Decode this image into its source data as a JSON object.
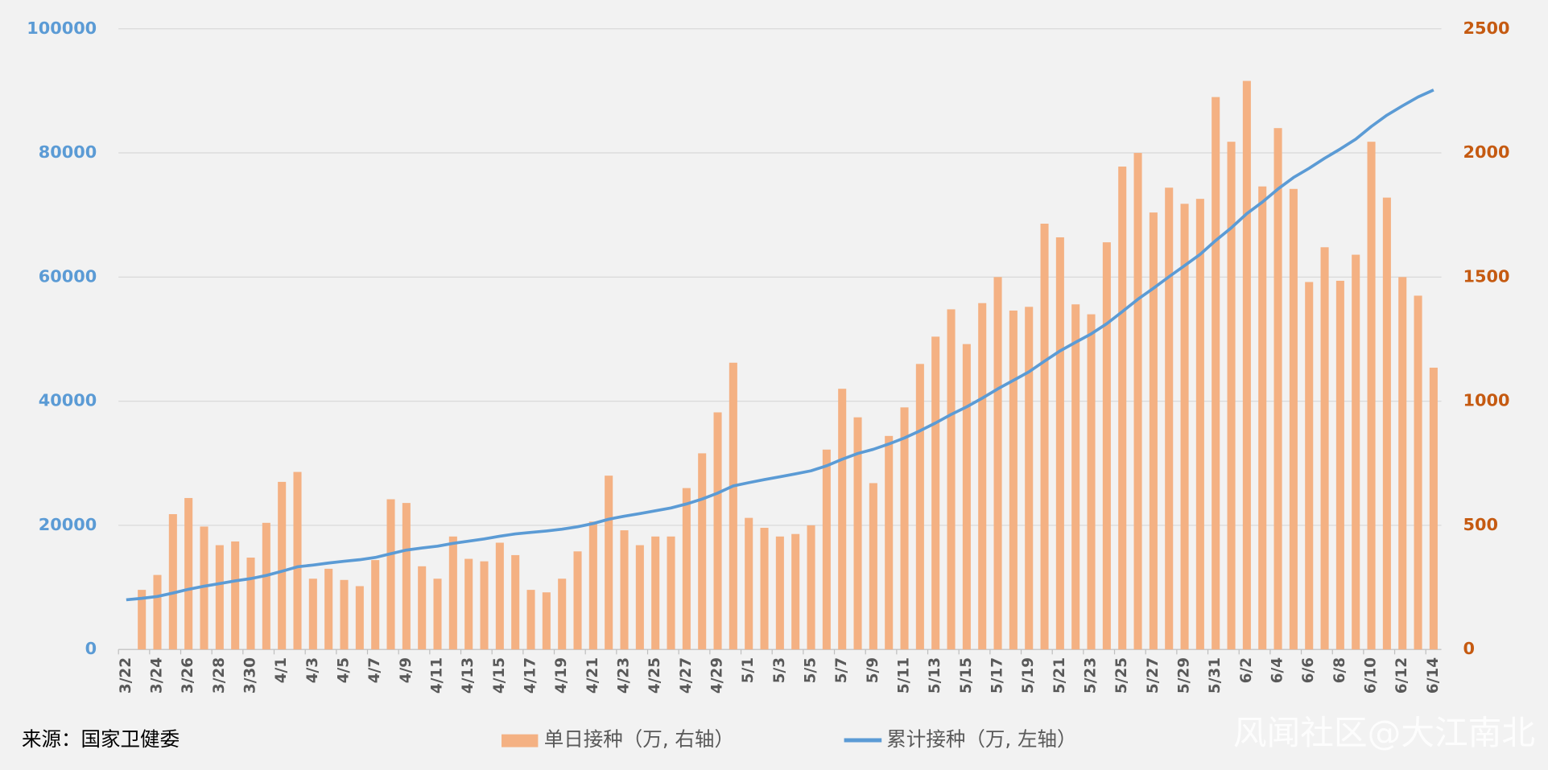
{
  "chart_data": {
    "type": "bar",
    "categories": [
      "3/22",
      null,
      "3/24",
      null,
      "3/26",
      null,
      "3/28",
      null,
      "3/30",
      null,
      "4/1",
      null,
      "4/3",
      null,
      "4/5",
      null,
      "4/7",
      null,
      "4/9",
      null,
      "4/11",
      null,
      "4/13",
      null,
      "4/15",
      null,
      "4/17",
      null,
      "4/19",
      null,
      "4/21",
      null,
      "4/23",
      null,
      "4/25",
      null,
      "4/27",
      null,
      "4/29",
      null,
      "5/1",
      null,
      "5/3",
      null,
      "5/5",
      null,
      "5/7",
      null,
      "5/9",
      null,
      "5/11",
      null,
      "5/13",
      null,
      "5/15",
      null,
      "5/17",
      null,
      "5/19",
      null,
      "5/21",
      null,
      "5/23",
      null,
      "5/25",
      null,
      "5/27",
      null,
      "5/29",
      null,
      "5/31",
      null,
      "6/2",
      null,
      "6/4",
      null,
      "6/6",
      null,
      "6/8",
      null,
      "6/10",
      null,
      "6/12",
      null,
      "6/14"
    ],
    "series": [
      {
        "name": "单日接种（万, 右轴）",
        "type": "bar",
        "axis": "y2",
        "color": "#f4b183",
        "values": [
          null,
          240,
          300,
          545,
          610,
          495,
          420,
          435,
          370,
          510,
          675,
          715,
          285,
          325,
          280,
          255,
          360,
          605,
          590,
          335,
          285,
          455,
          365,
          355,
          430,
          380,
          240,
          230,
          285,
          395,
          515,
          700,
          480,
          420,
          455,
          455,
          650,
          790,
          955,
          1155,
          530,
          490,
          455,
          465,
          500,
          805,
          1050,
          935,
          670,
          860,
          975,
          1150,
          1260,
          1370,
          1230,
          1395,
          1500,
          1365,
          1380,
          1715,
          1660,
          1390,
          1350,
          1640,
          1945,
          2000,
          1760,
          1860,
          1795,
          1815,
          2225,
          2045,
          2290,
          1865,
          2100,
          1855,
          1480,
          1620,
          1485,
          1590,
          2045,
          1820,
          1500,
          1425,
          1135
        ]
      },
      {
        "name": "累计接种（万, 左轴）",
        "type": "line",
        "axis": "y",
        "color": "#5b9bd5",
        "values": [
          8000,
          8240,
          8540,
          9085,
          9695,
          10190,
          10610,
          11045,
          11415,
          11925,
          12600,
          13315,
          13600,
          13925,
          14205,
          14460,
          14820,
          15425,
          16015,
          16350,
          16635,
          17090,
          17455,
          17810,
          18240,
          18620,
          18860,
          19090,
          19375,
          19770,
          20285,
          20985,
          21465,
          21885,
          22340,
          22795,
          23445,
          24235,
          25190,
          26345,
          26875,
          27365,
          27820,
          28285,
          28785,
          29590,
          30640,
          31575,
          32245,
          33105,
          34080,
          35230,
          36490,
          37860,
          39090,
          40485,
          41985,
          43350,
          44730,
          46445,
          48105,
          49495,
          50845,
          52485,
          54430,
          56430,
          58190,
          60050,
          61845,
          63660,
          65885,
          67930,
          70220,
          72085,
          74185,
          76040,
          77520,
          79140,
          80625,
          82215,
          84260,
          86080,
          87580,
          89005,
          90140
        ]
      }
    ],
    "ylim": [
      0,
      100000
    ],
    "yticks": [
      0,
      20000,
      40000,
      60000,
      80000,
      100000
    ],
    "y2lim": [
      0,
      2500
    ],
    "y2ticks": [
      0,
      500,
      1000,
      1500,
      2000,
      2500
    ],
    "grid": true,
    "legend": "bottom",
    "source": "来源：国家卫健委",
    "watermark": "风闻社区@大江南北"
  }
}
